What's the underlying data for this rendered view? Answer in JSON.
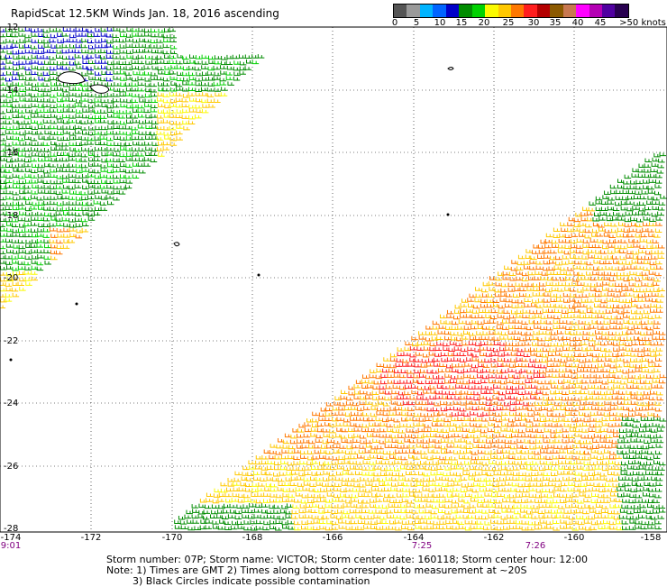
{
  "title": "RapidScat 12.5KM Winds Jan. 18, 2016 ascending",
  "legend": {
    "colors": [
      "#555555",
      "#9a9a9a",
      "#00b4ff",
      "#0064ff",
      "#0000c8",
      "#008c00",
      "#00d200",
      "#fafa00",
      "#ffc800",
      "#ff7800",
      "#ff1e1e",
      "#b40000",
      "#8c5a00",
      "#c87850",
      "#ff00ff",
      "#b400b4",
      "#5000a0",
      "#280050"
    ],
    "ticks": [
      "0",
      "5",
      "10",
      "15",
      "20",
      "25",
      "30",
      "35",
      "40",
      "45",
      ">50 knots"
    ]
  },
  "axes": {
    "y_labels": [
      "-12",
      "-14",
      "-16",
      "-18",
      "-20",
      "-22",
      "-24",
      "-26",
      "-28"
    ],
    "x_labels": [
      "-174",
      "-172",
      "-170",
      "-168",
      "-166",
      "-164",
      "-162",
      "-160",
      "-158"
    ],
    "time_labels": [
      "9:01",
      "7:25",
      "7:26"
    ]
  },
  "footer": {
    "line1": "Storm number: 07P;  Storm name: VICTOR;  Storm center date: 160118;  Storm center hour: 12:00",
    "line2": "Note: 1) Times are GMT  2) Times along bottom correspond to measurement at ~20S",
    "line3": "3) Black Circles indicate possible contamination"
  }
}
